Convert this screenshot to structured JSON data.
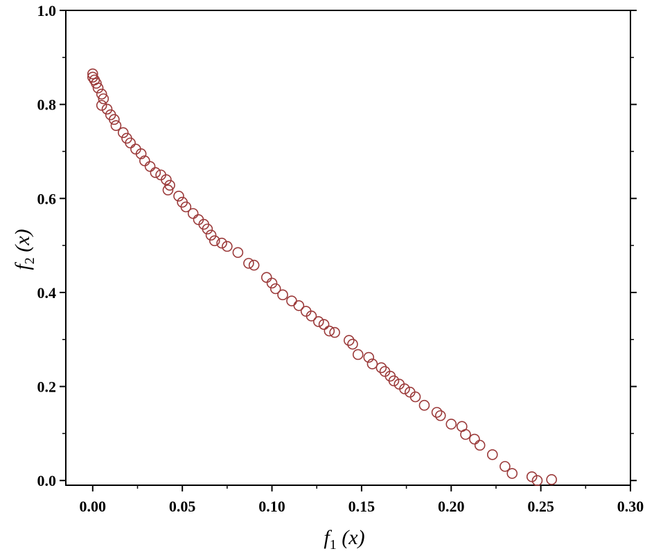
{
  "chart_data": {
    "type": "scatter",
    "xlabel_parts": {
      "f": "f",
      "sub": "1",
      "arg": " (x)"
    },
    "ylabel_parts": {
      "f": "f",
      "sub": "2",
      "arg": " (x)"
    },
    "xlim": [
      -0.015,
      0.3
    ],
    "ylim": [
      -0.01,
      1.0
    ],
    "xticks": [
      0.0,
      0.05,
      0.1,
      0.15,
      0.2,
      0.25,
      0.3
    ],
    "xtick_labels": [
      "0.00",
      "0.05",
      "0.10",
      "0.15",
      "0.20",
      "0.25",
      "0.30"
    ],
    "yticks": [
      0.0,
      0.2,
      0.4,
      0.6,
      0.8,
      1.0
    ],
    "ytick_labels": [
      "0.0",
      "0.2",
      "0.4",
      "0.6",
      "0.8",
      "1.0"
    ],
    "grid": false,
    "marker": "open-circle",
    "marker_color": "#9b3a3a",
    "points": [
      [
        0.0,
        0.865
      ],
      [
        0.0,
        0.858
      ],
      [
        0.001,
        0.852
      ],
      [
        0.002,
        0.845
      ],
      [
        0.003,
        0.835
      ],
      [
        0.005,
        0.822
      ],
      [
        0.006,
        0.812
      ],
      [
        0.005,
        0.798
      ],
      [
        0.008,
        0.79
      ],
      [
        0.01,
        0.778
      ],
      [
        0.012,
        0.768
      ],
      [
        0.013,
        0.755
      ],
      [
        0.017,
        0.74
      ],
      [
        0.019,
        0.728
      ],
      [
        0.021,
        0.718
      ],
      [
        0.024,
        0.705
      ],
      [
        0.027,
        0.695
      ],
      [
        0.029,
        0.68
      ],
      [
        0.032,
        0.668
      ],
      [
        0.035,
        0.655
      ],
      [
        0.038,
        0.65
      ],
      [
        0.041,
        0.64
      ],
      [
        0.043,
        0.628
      ],
      [
        0.042,
        0.618
      ],
      [
        0.048,
        0.605
      ],
      [
        0.05,
        0.592
      ],
      [
        0.052,
        0.582
      ],
      [
        0.056,
        0.568
      ],
      [
        0.059,
        0.555
      ],
      [
        0.062,
        0.545
      ],
      [
        0.064,
        0.535
      ],
      [
        0.066,
        0.522
      ],
      [
        0.068,
        0.51
      ],
      [
        0.072,
        0.505
      ],
      [
        0.075,
        0.498
      ],
      [
        0.081,
        0.485
      ],
      [
        0.087,
        0.462
      ],
      [
        0.09,
        0.458
      ],
      [
        0.097,
        0.432
      ],
      [
        0.1,
        0.42
      ],
      [
        0.102,
        0.408
      ],
      [
        0.106,
        0.395
      ],
      [
        0.111,
        0.382
      ],
      [
        0.115,
        0.372
      ],
      [
        0.119,
        0.36
      ],
      [
        0.122,
        0.35
      ],
      [
        0.126,
        0.338
      ],
      [
        0.129,
        0.332
      ],
      [
        0.132,
        0.318
      ],
      [
        0.135,
        0.315
      ],
      [
        0.143,
        0.298
      ],
      [
        0.145,
        0.29
      ],
      [
        0.148,
        0.268
      ],
      [
        0.154,
        0.262
      ],
      [
        0.156,
        0.248
      ],
      [
        0.161,
        0.24
      ],
      [
        0.163,
        0.232
      ],
      [
        0.166,
        0.222
      ],
      [
        0.168,
        0.212
      ],
      [
        0.171,
        0.205
      ],
      [
        0.174,
        0.195
      ],
      [
        0.177,
        0.188
      ],
      [
        0.18,
        0.178
      ],
      [
        0.185,
        0.16
      ],
      [
        0.192,
        0.145
      ],
      [
        0.194,
        0.138
      ],
      [
        0.2,
        0.12
      ],
      [
        0.206,
        0.115
      ],
      [
        0.208,
        0.098
      ],
      [
        0.213,
        0.088
      ],
      [
        0.216,
        0.075
      ],
      [
        0.223,
        0.055
      ],
      [
        0.23,
        0.03
      ],
      [
        0.234,
        0.015
      ],
      [
        0.245,
        0.008
      ],
      [
        0.248,
        0.0
      ],
      [
        0.256,
        0.002
      ]
    ]
  }
}
